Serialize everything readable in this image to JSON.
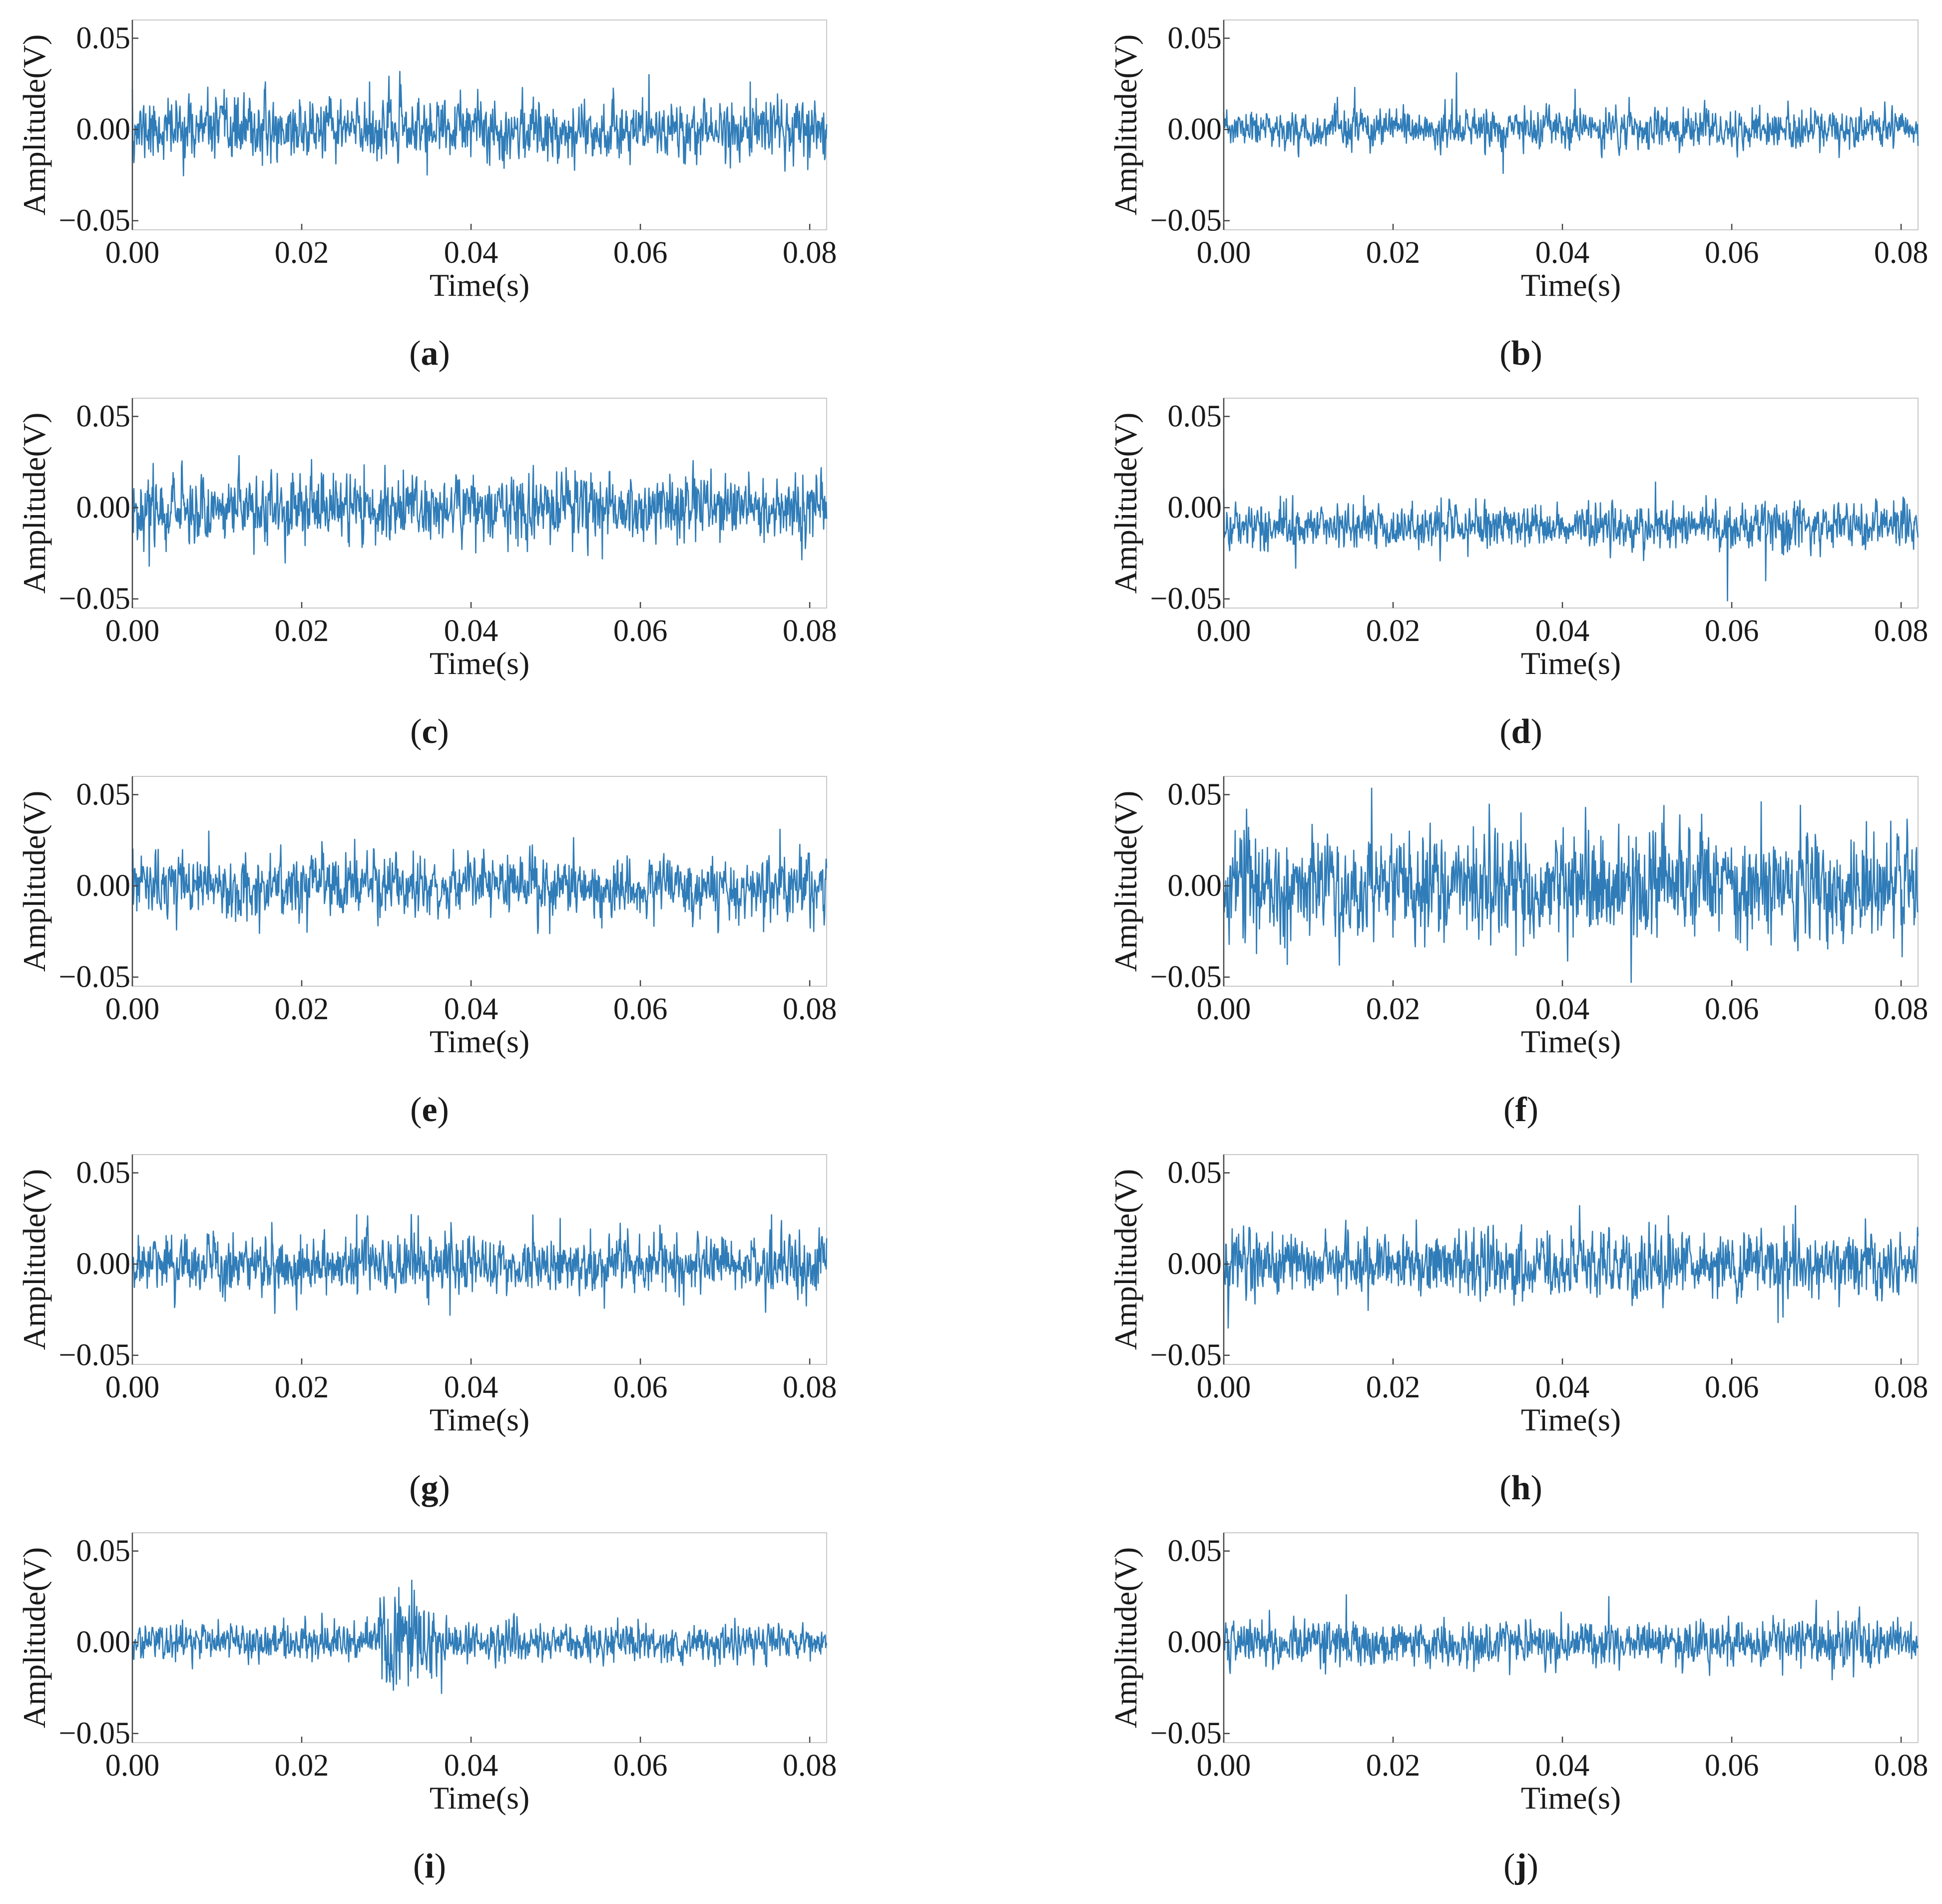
{
  "figure": {
    "line_color": "#2f7cb8",
    "axis_color": "#444444",
    "frame_color": "#c8c8c8"
  },
  "chart_data": [
    {
      "id": "a",
      "label_letter": "a",
      "type": "line",
      "xlabel": "Time(s)",
      "ylabel": "Amplitude(V)",
      "xlim": [
        0,
        0.082
      ],
      "ylim": [
        -0.055,
        0.06
      ],
      "xticks": [
        0,
        0.02,
        0.04,
        0.06,
        0.08
      ],
      "xtick_labels": [
        "0.00",
        "0.02",
        "0.04",
        "0.06",
        "0.08"
      ],
      "yticks": [
        -0.05,
        0,
        0.05
      ],
      "ytick_labels": [
        "−0.05",
        "0.00",
        "0.05"
      ],
      "signal": {
        "samples": 1400,
        "duration": 0.082,
        "offset": 0.0,
        "noise_std": 0.008,
        "seed": 11,
        "spikes": [
          [
            0.0,
            0.022
          ],
          [
            0.028,
            0.026
          ],
          [
            0.061,
            0.03
          ],
          [
            0.073,
            0.026
          ]
        ]
      }
    },
    {
      "id": "b",
      "label_letter": "b",
      "type": "line",
      "xlabel": "Time(s)",
      "ylabel": "Amplitude(V)",
      "xlim": [
        0,
        0.082
      ],
      "ylim": [
        -0.055,
        0.06
      ],
      "xticks": [
        0,
        0.02,
        0.04,
        0.06,
        0.08
      ],
      "xtick_labels": [
        "0.00",
        "0.02",
        "0.04",
        "0.06",
        "0.08"
      ],
      "yticks": [
        -0.05,
        0,
        0.05
      ],
      "ytick_labels": [
        "−0.05",
        "0.00",
        "0.05"
      ],
      "signal": {
        "samples": 1400,
        "duration": 0.082,
        "offset": 0.0,
        "noise_std": 0.005,
        "seed": 23,
        "spikes": [
          [
            0.0275,
            0.031
          ],
          [
            0.033,
            -0.024
          ],
          [
            0.0415,
            0.022
          ],
          [
            0.0155,
            0.023
          ]
        ]
      }
    },
    {
      "id": "c",
      "label_letter": "c",
      "type": "line",
      "xlabel": "Time(s)",
      "ylabel": "Amplitude(V)",
      "xlim": [
        0,
        0.082
      ],
      "ylim": [
        -0.055,
        0.06
      ],
      "xticks": [
        0,
        0.02,
        0.04,
        0.06,
        0.08
      ],
      "xtick_labels": [
        "0.00",
        "0.02",
        "0.04",
        "0.06",
        "0.08"
      ],
      "yticks": [
        -0.05,
        0,
        0.05
      ],
      "ytick_labels": [
        "−0.05",
        "0.00",
        "0.05"
      ],
      "signal": {
        "samples": 1400,
        "duration": 0.082,
        "offset": 0.0,
        "noise_std": 0.009,
        "seed": 37,
        "spikes": [
          [
            0.0555,
            0.049
          ],
          [
            0.002,
            0.031
          ],
          [
            0.002,
            -0.032
          ],
          [
            0.0555,
            -0.028
          ]
        ]
      }
    },
    {
      "id": "d",
      "label_letter": "d",
      "type": "line",
      "xlabel": "Time(s)",
      "ylabel": "Amplitude(V)",
      "xlim": [
        0,
        0.082
      ],
      "ylim": [
        -0.055,
        0.06
      ],
      "xticks": [
        0,
        0.02,
        0.04,
        0.06,
        0.08
      ],
      "xtick_labels": [
        "0.00",
        "0.02",
        "0.04",
        "0.06",
        "0.08"
      ],
      "yticks": [
        -0.05,
        0,
        0.05
      ],
      "ytick_labels": [
        "−0.05",
        "0.00",
        "0.05"
      ],
      "signal": {
        "samples": 1400,
        "duration": 0.082,
        "offset": -0.01,
        "noise_std": 0.006,
        "seed": 41,
        "spikes": [
          [
            0.0595,
            -0.051
          ],
          [
            0.064,
            -0.04
          ],
          [
            0.0,
            0.01
          ],
          [
            0.051,
            0.014
          ]
        ]
      }
    },
    {
      "id": "e",
      "label_letter": "e",
      "type": "line",
      "xlabel": "Time(s)",
      "ylabel": "Amplitude(V)",
      "xlim": [
        0,
        0.082
      ],
      "ylim": [
        -0.055,
        0.06
      ],
      "xticks": [
        0,
        0.02,
        0.04,
        0.06,
        0.08
      ],
      "xtick_labels": [
        "0.00",
        "0.02",
        "0.04",
        "0.06",
        "0.08"
      ],
      "yticks": [
        -0.05,
        0,
        0.05
      ],
      "ytick_labels": [
        "−0.05",
        "0.00",
        "0.05"
      ],
      "signal": {
        "samples": 1400,
        "duration": 0.082,
        "offset": 0.0,
        "noise_std": 0.008,
        "seed": 53,
        "spikes": [
          [
            0.0765,
            0.031
          ],
          [
            0.009,
            0.03
          ],
          [
            0.0805,
            -0.025
          ],
          [
            0.015,
            -0.026
          ]
        ]
      }
    },
    {
      "id": "f",
      "label_letter": "f",
      "type": "line",
      "xlabel": "Time(s)",
      "ylabel": "Amplitude(V)",
      "xlim": [
        0,
        0.082
      ],
      "ylim": [
        -0.055,
        0.06
      ],
      "xticks": [
        0,
        0.02,
        0.04,
        0.06,
        0.08
      ],
      "xtick_labels": [
        "0.00",
        "0.02",
        "0.04",
        "0.06",
        "0.08"
      ],
      "yticks": [
        -0.05,
        0,
        0.05
      ],
      "ytick_labels": [
        "−0.05",
        "0.00",
        "0.05"
      ],
      "signal": {
        "samples": 1400,
        "duration": 0.082,
        "offset": 0.0,
        "noise_std": 0.014,
        "seed": 67,
        "spikes": [
          [
            0.0635,
            0.046
          ],
          [
            0.052,
            0.044
          ],
          [
            0.0075,
            -0.043
          ],
          [
            0.0345,
            -0.038
          ]
        ]
      }
    },
    {
      "id": "g",
      "label_letter": "g",
      "type": "line",
      "xlabel": "Time(s)",
      "ylabel": "Amplitude(V)",
      "xlim": [
        0,
        0.082
      ],
      "ylim": [
        -0.055,
        0.06
      ],
      "xticks": [
        0,
        0.02,
        0.04,
        0.06,
        0.08
      ],
      "xtick_labels": [
        "0.00",
        "0.02",
        "0.04",
        "0.06",
        "0.08"
      ],
      "yticks": [
        -0.05,
        0,
        0.05
      ],
      "ytick_labels": [
        "−0.05",
        "0.00",
        "0.05"
      ],
      "signal": {
        "samples": 1400,
        "duration": 0.082,
        "offset": 0.0,
        "noise_std": 0.008,
        "seed": 71,
        "spikes": [
          [
            0.0265,
            0.027
          ],
          [
            0.0375,
            -0.028
          ],
          [
            0.0755,
            0.027
          ],
          [
            0.0505,
            0.025
          ]
        ]
      }
    },
    {
      "id": "h",
      "label_letter": "h",
      "type": "line",
      "xlabel": "Time(s)",
      "ylabel": "Amplitude(V)",
      "xlim": [
        0,
        0.082
      ],
      "ylim": [
        -0.055,
        0.06
      ],
      "xticks": [
        0,
        0.02,
        0.04,
        0.06,
        0.08
      ],
      "xtick_labels": [
        "0.00",
        "0.02",
        "0.04",
        "0.06",
        "0.08"
      ],
      "yticks": [
        -0.05,
        0,
        0.05
      ],
      "ytick_labels": [
        "−0.05",
        "0.00",
        "0.05"
      ],
      "signal": {
        "samples": 1400,
        "duration": 0.082,
        "offset": 0.0,
        "noise_std": 0.009,
        "seed": 83,
        "spikes": [
          [
            0.0005,
            -0.035
          ],
          [
            0.042,
            0.032
          ],
          [
            0.0675,
            0.032
          ],
          [
            0.0655,
            -0.032
          ]
        ]
      }
    },
    {
      "id": "i",
      "label_letter": "i",
      "type": "line",
      "xlabel": "Time(s)",
      "ylabel": "Amplitude(V)",
      "xlim": [
        0,
        0.082
      ],
      "ylim": [
        -0.055,
        0.06
      ],
      "xticks": [
        0,
        0.02,
        0.04,
        0.06,
        0.08
      ],
      "xtick_labels": [
        "0.00",
        "0.02",
        "0.04",
        "0.06",
        "0.08"
      ],
      "yticks": [
        -0.05,
        0,
        0.05
      ],
      "ytick_labels": [
        "−0.05",
        "0.00",
        "0.05"
      ],
      "signal": {
        "samples": 1400,
        "duration": 0.082,
        "offset": 0.0,
        "noise_std": 0.005,
        "seed": 97,
        "spikes": [
          [
            0.033,
            0.034
          ],
          [
            0.0315,
            0.03
          ],
          [
            0.0365,
            -0.028
          ],
          [
            0.0295,
            -0.02
          ]
        ],
        "bursts": [
          [
            0.029,
            0.036,
            2.6
          ]
        ]
      }
    },
    {
      "id": "j",
      "label_letter": "j",
      "type": "line",
      "xlabel": "Time(s)",
      "ylabel": "Amplitude(V)",
      "xlim": [
        0,
        0.082
      ],
      "ylim": [
        -0.055,
        0.06
      ],
      "xticks": [
        0,
        0.02,
        0.04,
        0.06,
        0.08
      ],
      "xtick_labels": [
        "0.00",
        "0.02",
        "0.04",
        "0.06",
        "0.08"
      ],
      "yticks": [
        -0.05,
        0,
        0.05
      ],
      "ytick_labels": [
        "−0.05",
        "0.00",
        "0.05"
      ],
      "signal": {
        "samples": 1400,
        "duration": 0.082,
        "offset": 0.0,
        "noise_std": 0.006,
        "seed": 101,
        "spikes": [
          [
            0.0455,
            0.025
          ],
          [
            0.0145,
            0.026
          ],
          [
            0.07,
            0.023
          ],
          [
            0.066,
            -0.018
          ]
        ]
      }
    }
  ]
}
